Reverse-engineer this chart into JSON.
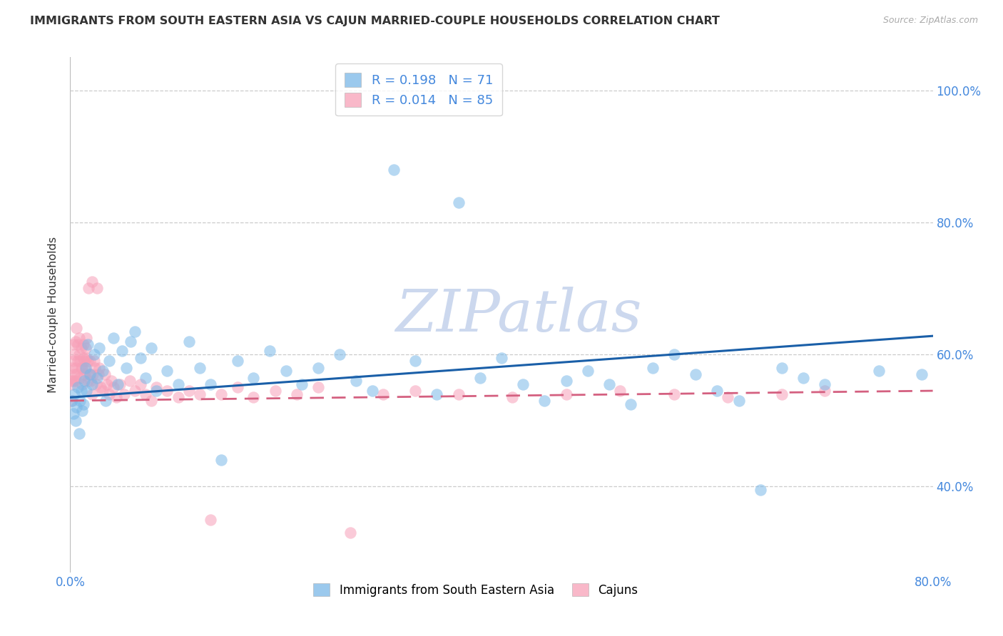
{
  "title": "IMMIGRANTS FROM SOUTH EASTERN ASIA VS CAJUN MARRIED-COUPLE HOUSEHOLDS CORRELATION CHART",
  "source": "Source: ZipAtlas.com",
  "ylabel": "Married-couple Households",
  "legend_blue_label": "Immigrants from South Eastern Asia",
  "legend_pink_label": "Cajuns",
  "xlim": [
    0.0,
    0.8
  ],
  "ylim": [
    0.27,
    1.05
  ],
  "yticks": [
    0.4,
    0.6,
    0.8,
    1.0
  ],
  "ytick_labels": [
    "40.0%",
    "60.0%",
    "80.0%",
    "100.0%"
  ],
  "xtick_positions": [
    0.0,
    0.1,
    0.2,
    0.3,
    0.4,
    0.5,
    0.6,
    0.7,
    0.8
  ],
  "xtick_labels": [
    "0.0%",
    "",
    "",
    "",
    "",
    "",
    "",
    "",
    "80.0%"
  ],
  "blue_R": 0.198,
  "blue_N": 71,
  "pink_R": 0.014,
  "pink_N": 85,
  "blue_color": "#7ab8e8",
  "pink_color": "#f7a0b8",
  "trend_blue_color": "#1a5fa8",
  "trend_pink_color": "#d46080",
  "grid_color": "#cccccc",
  "tick_color": "#4488dd",
  "title_color": "#333333",
  "watermark_color": "#ccd8ee",
  "blue_x": [
    0.002,
    0.003,
    0.004,
    0.005,
    0.006,
    0.007,
    0.008,
    0.009,
    0.01,
    0.011,
    0.012,
    0.013,
    0.014,
    0.015,
    0.016,
    0.018,
    0.02,
    0.022,
    0.025,
    0.027,
    0.03,
    0.033,
    0.036,
    0.04,
    0.044,
    0.048,
    0.052,
    0.056,
    0.06,
    0.065,
    0.07,
    0.075,
    0.08,
    0.09,
    0.1,
    0.11,
    0.12,
    0.13,
    0.14,
    0.155,
    0.17,
    0.185,
    0.2,
    0.215,
    0.23,
    0.25,
    0.265,
    0.28,
    0.3,
    0.32,
    0.34,
    0.36,
    0.38,
    0.4,
    0.42,
    0.44,
    0.46,
    0.48,
    0.5,
    0.52,
    0.54,
    0.56,
    0.58,
    0.6,
    0.62,
    0.64,
    0.66,
    0.68,
    0.7,
    0.75,
    0.79
  ],
  "blue_y": [
    0.53,
    0.51,
    0.54,
    0.5,
    0.52,
    0.55,
    0.48,
    0.53,
    0.545,
    0.515,
    0.525,
    0.56,
    0.58,
    0.545,
    0.615,
    0.57,
    0.555,
    0.6,
    0.565,
    0.61,
    0.575,
    0.53,
    0.59,
    0.625,
    0.555,
    0.605,
    0.58,
    0.62,
    0.635,
    0.595,
    0.565,
    0.61,
    0.545,
    0.575,
    0.555,
    0.62,
    0.58,
    0.555,
    0.44,
    0.59,
    0.565,
    0.605,
    0.575,
    0.555,
    0.58,
    0.6,
    0.56,
    0.545,
    0.88,
    0.59,
    0.54,
    0.83,
    0.565,
    0.595,
    0.555,
    0.53,
    0.56,
    0.575,
    0.555,
    0.525,
    0.58,
    0.6,
    0.57,
    0.545,
    0.53,
    0.395,
    0.58,
    0.565,
    0.555,
    0.575,
    0.57
  ],
  "pink_x": [
    0.001,
    0.001,
    0.002,
    0.002,
    0.003,
    0.003,
    0.003,
    0.004,
    0.004,
    0.005,
    0.005,
    0.005,
    0.006,
    0.006,
    0.007,
    0.007,
    0.008,
    0.008,
    0.009,
    0.009,
    0.01,
    0.01,
    0.011,
    0.011,
    0.012,
    0.012,
    0.013,
    0.013,
    0.014,
    0.014,
    0.015,
    0.015,
    0.016,
    0.016,
    0.017,
    0.018,
    0.018,
    0.019,
    0.02,
    0.02,
    0.021,
    0.022,
    0.023,
    0.024,
    0.025,
    0.026,
    0.027,
    0.028,
    0.03,
    0.032,
    0.034,
    0.036,
    0.038,
    0.04,
    0.043,
    0.046,
    0.05,
    0.055,
    0.06,
    0.065,
    0.07,
    0.075,
    0.08,
    0.09,
    0.1,
    0.11,
    0.12,
    0.13,
    0.14,
    0.155,
    0.17,
    0.19,
    0.21,
    0.23,
    0.26,
    0.29,
    0.32,
    0.36,
    0.41,
    0.46,
    0.51,
    0.56,
    0.61,
    0.66,
    0.7
  ],
  "pink_y": [
    0.53,
    0.56,
    0.555,
    0.58,
    0.56,
    0.59,
    0.615,
    0.57,
    0.6,
    0.56,
    0.58,
    0.62,
    0.57,
    0.64,
    0.59,
    0.615,
    0.6,
    0.625,
    0.565,
    0.59,
    0.58,
    0.61,
    0.555,
    0.58,
    0.595,
    0.615,
    0.57,
    0.59,
    0.575,
    0.61,
    0.595,
    0.625,
    0.59,
    0.56,
    0.7,
    0.57,
    0.59,
    0.56,
    0.54,
    0.71,
    0.57,
    0.59,
    0.58,
    0.555,
    0.7,
    0.57,
    0.58,
    0.55,
    0.545,
    0.57,
    0.555,
    0.54,
    0.56,
    0.55,
    0.535,
    0.555,
    0.54,
    0.56,
    0.545,
    0.555,
    0.54,
    0.53,
    0.55,
    0.545,
    0.535,
    0.545,
    0.54,
    0.35,
    0.54,
    0.55,
    0.535,
    0.545,
    0.54,
    0.55,
    0.33,
    0.54,
    0.545,
    0.54,
    0.535,
    0.54,
    0.545,
    0.54,
    0.535,
    0.54,
    0.545
  ],
  "blue_trend_x0": 0.0,
  "blue_trend_x1": 0.8,
  "blue_trend_y0": 0.535,
  "blue_trend_y1": 0.628,
  "pink_trend_x0": 0.0,
  "pink_trend_x1": 0.8,
  "pink_trend_y0": 0.53,
  "pink_trend_y1": 0.545
}
